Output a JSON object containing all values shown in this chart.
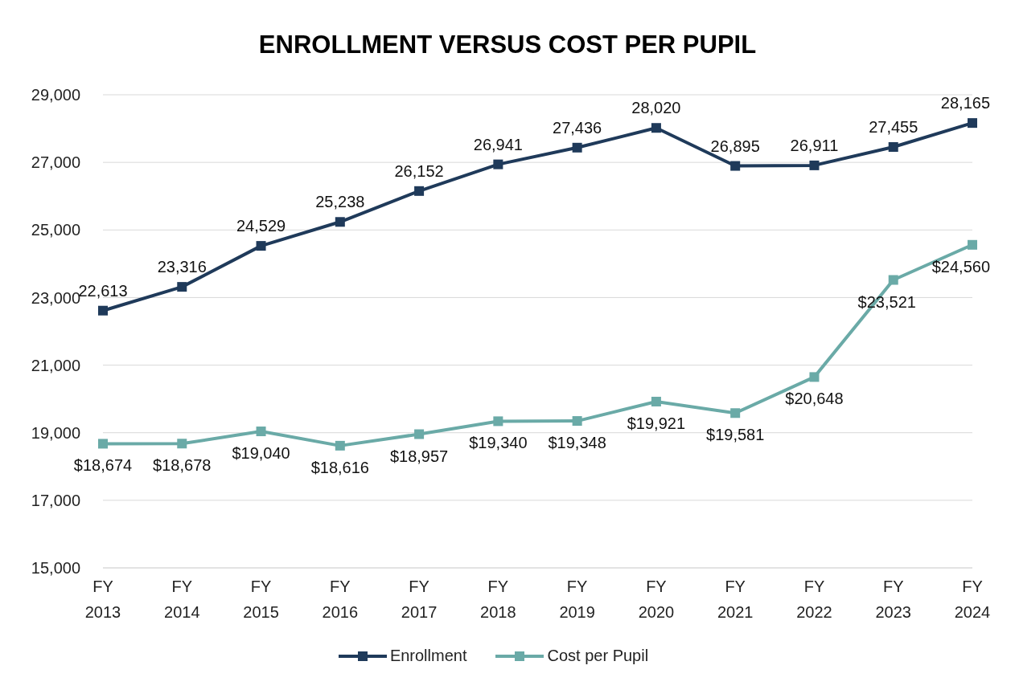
{
  "chart_data": {
    "type": "line",
    "title": "ENROLLMENT VERSUS COST PER PUPIL",
    "categories": [
      "FY 2013",
      "FY 2014",
      "FY 2015",
      "FY 2016",
      "FY 2017",
      "FY 2018",
      "FY 2019",
      "FY 2020",
      "FY 2021",
      "FY 2022",
      "FY 2023",
      "FY 2024"
    ],
    "series": [
      {
        "name": "Enrollment",
        "color": "#1f3a5a",
        "values": [
          22613,
          23316,
          24529,
          25238,
          26152,
          26941,
          27436,
          28020,
          26895,
          26911,
          27455,
          28165
        ],
        "value_labels": [
          "22,613",
          "23,316",
          "24,529",
          "25,238",
          "26,152",
          "26,941",
          "27,436",
          "28,020",
          "26,895",
          "26,911",
          "27,455",
          "28,165"
        ]
      },
      {
        "name": "Cost per Pupil",
        "color": "#6aaaa7",
        "values": [
          18674,
          18678,
          19040,
          18616,
          18957,
          19340,
          19348,
          19921,
          19581,
          20648,
          23521,
          24560
        ],
        "value_labels": [
          "$18,674",
          "$18,678",
          "$19,040",
          "$18,616",
          "$18,957",
          "$19,340",
          "$19,348",
          "$19,921",
          "$19,581",
          "$20,648",
          "$23,521",
          "$24,560"
        ]
      }
    ],
    "ylim": [
      15000,
      29000
    ],
    "yticks": [
      {
        "value": 15000,
        "label": "15,000"
      },
      {
        "value": 17000,
        "label": "17,000"
      },
      {
        "value": 19000,
        "label": "19,000"
      },
      {
        "value": 21000,
        "label": "21,000"
      },
      {
        "value": 23000,
        "label": "23,000"
      },
      {
        "value": 25000,
        "label": "25,000"
      },
      {
        "value": 27000,
        "label": "27,000"
      },
      {
        "value": 29000,
        "label": "29,000"
      }
    ],
    "grid": "y",
    "legend": "bottom",
    "marker": "square",
    "line_style": "solid"
  }
}
